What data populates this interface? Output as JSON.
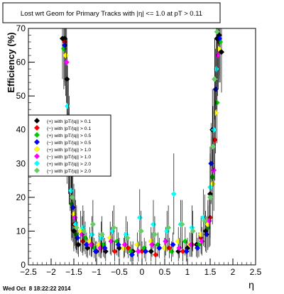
{
  "timestamp": "Wed Oct  8 18:22:22 2014",
  "chart_data": {
    "type": "scatter",
    "title": "Lost wrt Geom for Primary Tracks with |η| <= 1.0 at pT > 0.11",
    "xlabel": "η",
    "ylabel": "Efficiency (%)",
    "xlim": [
      -2.5,
      2.5
    ],
    "ylim": [
      0,
      70
    ],
    "xticks": [
      -2.5,
      -2,
      -1.5,
      -1,
      -0.5,
      0,
      0.5,
      1,
      1.5,
      2,
      2.5
    ],
    "xtick_labels": [
      "−2.5",
      "−2",
      "−1.5",
      "−1",
      "−0.5",
      "0",
      "0.5",
      "1",
      "1.5",
      "2",
      "2.5"
    ],
    "yticks": [
      0,
      10,
      20,
      30,
      40,
      50,
      60,
      70
    ],
    "ytick_labels": [
      "0",
      "10",
      "20",
      "30",
      "40",
      "50",
      "60",
      "70"
    ],
    "grid": false,
    "legend_position": "left",
    "series": [
      {
        "name": "(+) with |pT/|q|| > 0.1",
        "color": "#000000",
        "x": [
          -1.75,
          -1.7,
          -1.65,
          -1.6,
          -1.55,
          -1.5,
          -1.4,
          -1.2,
          -1.0,
          -0.8,
          -0.5,
          -0.2,
          0.2,
          0.5,
          0.8,
          1.0,
          1.2,
          1.4,
          1.5,
          1.55,
          1.6,
          1.65,
          1.7,
          1.75
        ],
        "y": [
          67,
          67,
          55,
          38,
          20,
          10,
          6,
          5,
          4,
          4,
          5,
          4,
          4,
          5,
          4,
          5,
          6,
          10,
          21,
          40,
          55,
          67,
          68,
          63
        ]
      },
      {
        "name": "(−) with |pT/|q|| > 0.1",
        "color": "#ff0000",
        "x": [
          -1.7,
          -1.65,
          -1.6,
          -1.5,
          -1.3,
          -1.1,
          -0.9,
          -0.6,
          -0.3,
          0.0,
          0.3,
          0.6,
          0.9,
          1.1,
          1.3,
          1.5,
          1.6,
          1.65,
          1.7
        ],
        "y": [
          66,
          41,
          30,
          12,
          7,
          6,
          5,
          4,
          5,
          4,
          3,
          5,
          4,
          6,
          8,
          14,
          37,
          58,
          66
        ]
      },
      {
        "name": "(+) with |pT/|q|| > 0.5",
        "color": "#00cc00",
        "x": [
          -1.72,
          -1.65,
          -1.55,
          -1.45,
          -1.25,
          -1.05,
          -0.85,
          -0.55,
          -0.25,
          0.05,
          0.35,
          0.65,
          0.95,
          1.25,
          1.45,
          1.55,
          1.65,
          1.72
        ],
        "y": [
          64,
          36,
          18,
          9,
          8,
          5,
          6,
          7,
          4,
          5,
          6,
          4,
          7,
          6,
          11,
          26,
          48,
          66
        ]
      },
      {
        "name": "(−) with |pT/|q|| > 0.5",
        "color": "#0000ff",
        "x": [
          -1.7,
          -1.62,
          -1.52,
          -1.42,
          -1.22,
          -1.02,
          -0.82,
          -0.52,
          -0.22,
          0.08,
          0.38,
          0.68,
          0.98,
          1.22,
          1.42,
          1.52,
          1.62,
          1.7
        ],
        "y": [
          65,
          33,
          17,
          8,
          6,
          4,
          5,
          6,
          3,
          4,
          5,
          6,
          4,
          5,
          9,
          30,
          52,
          67
        ]
      },
      {
        "name": "(+) with |pT/|q|| > 1.0",
        "color": "#ffff00",
        "x": [
          -1.68,
          -1.6,
          -1.5,
          -1.35,
          -1.15,
          -0.95,
          -0.7,
          -0.4,
          -0.1,
          0.2,
          0.5,
          0.8,
          1.05,
          1.3,
          1.45,
          1.55,
          1.62,
          1.68
        ],
        "y": [
          62,
          30,
          15,
          10,
          7,
          6,
          8,
          5,
          6,
          7,
          5,
          7,
          6,
          9,
          12,
          24,
          45,
          64
        ]
      },
      {
        "name": "(−) with |pT/|q|| > 1.0",
        "color": "#ff00ff",
        "x": [
          -1.66,
          -1.58,
          -1.48,
          -1.32,
          -1.12,
          -0.92,
          -0.68,
          -0.38,
          -0.08,
          0.22,
          0.52,
          0.82,
          1.08,
          1.32,
          1.48,
          1.58,
          1.66
        ],
        "y": [
          60,
          28,
          14,
          9,
          6,
          5,
          7,
          6,
          4,
          6,
          7,
          5,
          6,
          7,
          13,
          28,
          62
        ]
      },
      {
        "name": "(+) with |pT/|q|| > 2.0",
        "color": "#00ffff",
        "x": [
          -1.64,
          -1.56,
          -1.46,
          -1.3,
          -1.1,
          -0.9,
          -0.65,
          -0.35,
          -0.05,
          0.25,
          0.55,
          0.7,
          0.85,
          1.1,
          1.35,
          1.5,
          1.58,
          1.64
        ],
        "y": [
          47,
          22,
          12,
          11,
          9,
          8,
          10,
          9,
          14,
          12,
          10,
          21,
          12,
          11,
          14,
          23,
          40,
          58
        ]
      },
      {
        "name": "(−) with |pT/|q|| > 2.0",
        "color": "#66cc66",
        "x": [
          -1.62,
          -1.54,
          -1.44,
          -1.28,
          -1.08,
          -0.88,
          -0.62,
          -0.32,
          -0.02,
          0.28,
          0.58,
          0.88,
          1.12,
          1.38,
          1.5,
          1.56,
          1.6,
          1.65
        ],
        "y": [
          43,
          20,
          11,
          10,
          12,
          9,
          11,
          8,
          10,
          9,
          11,
          12,
          10,
          13,
          20,
          35,
          55,
          69
        ]
      }
    ]
  }
}
